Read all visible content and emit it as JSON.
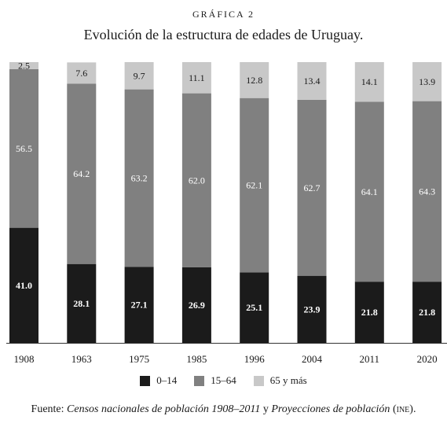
{
  "kicker": "GRÁFICA 2",
  "title": "Evolución de la estructura de edades de Uruguay.",
  "source": {
    "prefix": "Fuente: ",
    "part1": "Censos nacionales de población 1908–2011",
    "middle": " y ",
    "part2": "Proyecciones de población",
    "suffix_open": " (",
    "org": "ine",
    "suffix_close": ")."
  },
  "colors": {
    "young": "#1b1b1b",
    "adult": "#808080",
    "old": "#c8c8c8",
    "axis": "#333333"
  },
  "chart_data": {
    "type": "bar",
    "stacked": true,
    "normalized_to": 100,
    "categories": [
      "1908",
      "1963",
      "1975",
      "1985",
      "1996",
      "2004",
      "2011",
      "2020"
    ],
    "series": [
      {
        "name": "0–14",
        "values": [
          41.0,
          28.1,
          27.1,
          26.9,
          25.1,
          23.9,
          21.8,
          21.8
        ]
      },
      {
        "name": "15–64",
        "values": [
          56.5,
          64.2,
          63.2,
          62.0,
          62.1,
          62.7,
          64.1,
          64.3
        ]
      },
      {
        "name": "65 y más",
        "values": [
          2.5,
          7.6,
          9.7,
          11.1,
          12.8,
          13.4,
          14.1,
          13.9
        ]
      }
    ],
    "data_labels": true,
    "legend_position": "bottom",
    "grid": false
  }
}
